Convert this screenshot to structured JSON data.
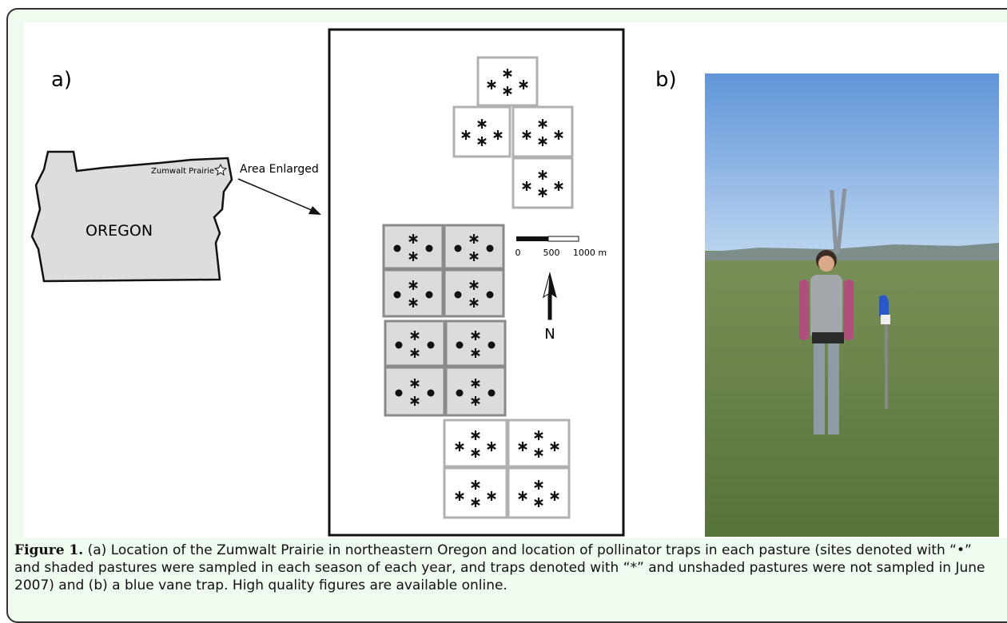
{
  "figure": {
    "panel_a_label": "a)",
    "panel_b_label": "b)",
    "map": {
      "site_label": "Zumwalt Prairie",
      "state_label": "OREGON",
      "arrow_label": "Area Enlarged"
    },
    "scale_bar": {
      "labels": [
        "0",
        "500",
        "1000 m"
      ]
    },
    "north_label": "N"
  },
  "caption": {
    "label": "Figure 1.",
    "text": "(a) Location of the Zumwalt Prairie in northeastern Oregon and location of pollinator traps in each pasture (sites denoted with “•” and shaded pastures were sampled in each season of each year, and traps denoted with “*” and unshaded pastures were not sampled in June 2007) and (b) a blue vane trap. High quality figures are available online."
  }
}
